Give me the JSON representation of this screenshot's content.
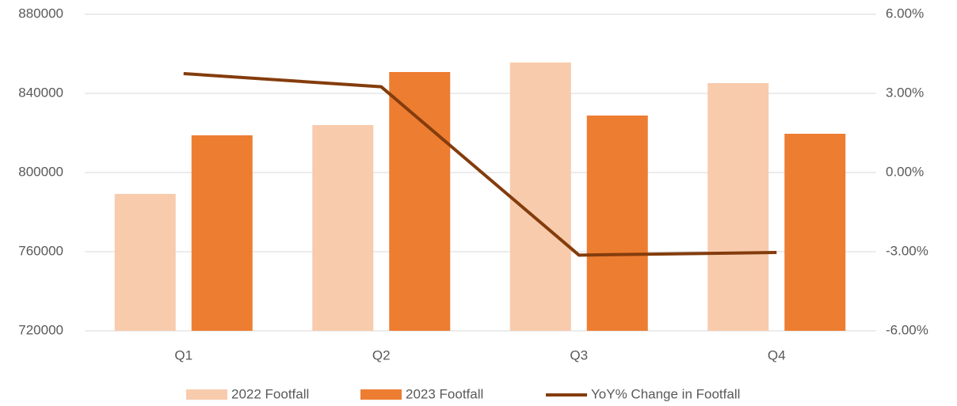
{
  "chart_data": {
    "type": "bar",
    "categories": [
      "Q1",
      "Q2",
      "Q3",
      "Q4"
    ],
    "series": [
      {
        "name": "2022 Footfall",
        "color": "#f8cbad",
        "type": "bar",
        "values": [
          789200,
          824000,
          855600,
          845200
        ]
      },
      {
        "name": "2023 Footfall",
        "color": "#ed7d31",
        "type": "bar",
        "values": [
          818800,
          850800,
          828800,
          819600
        ]
      },
      {
        "name": "YoY% Change in Footfall",
        "color": "#843c0c",
        "type": "line",
        "axis": "y2",
        "values": [
          3.75,
          3.25,
          -3.13,
          -3.03
        ]
      }
    ],
    "ylim": [
      720000,
      880000
    ],
    "yticks": [
      720000,
      760000,
      800000,
      840000,
      880000
    ],
    "y2lim": [
      -6,
      6
    ],
    "y2ticks": [
      {
        "value": -6,
        "label": "-6.00%"
      },
      {
        "value": -3,
        "label": "-3.00%"
      },
      {
        "value": 0,
        "label": "0.00%"
      },
      {
        "value": 3,
        "label": "3.00%"
      },
      {
        "value": 6,
        "label": "6.00%"
      }
    ],
    "grid": true,
    "legend": "bottom"
  }
}
